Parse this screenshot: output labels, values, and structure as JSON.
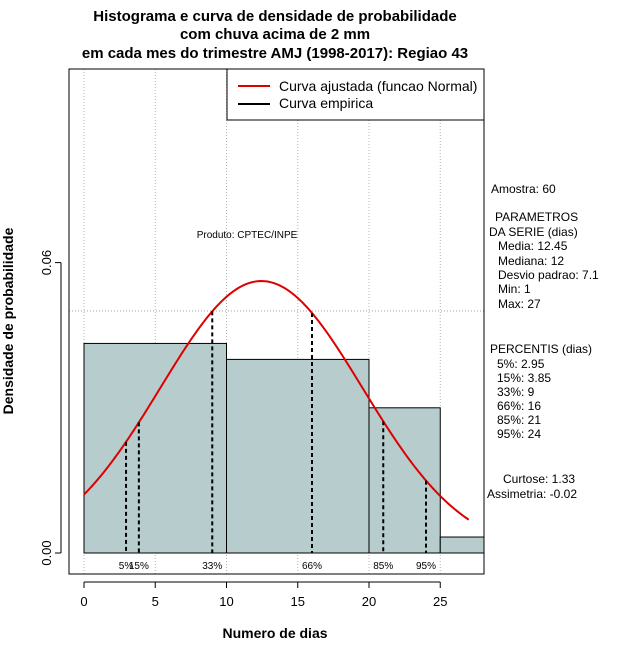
{
  "chart_data": {
    "type": "histogram",
    "title_lines": [
      "Histograma e curva de densidade de probabilidade",
      "com chuva acima de 2 mm",
      "em cada mes do trimestre AMJ (1998-2017): Regiao 43"
    ],
    "xlabel": "Numero de dias",
    "ylabel": "Densidade de probabilidade",
    "xlim": [
      -1,
      28
    ],
    "ylim": [
      -0.003,
      0.099
    ],
    "x_ticks": [
      0,
      5,
      10,
      15,
      20,
      25
    ],
    "x_tick_labels": [
      "0",
      "5",
      "10",
      "15",
      "20",
      "25"
    ],
    "y_ticks": [
      0.0,
      0.06
    ],
    "y_tick_labels": [
      "0.00",
      "0.06"
    ],
    "grid": true,
    "bins": [
      {
        "x0": 0,
        "x1": 10,
        "density": 0.0433
      },
      {
        "x0": 10,
        "x1": 20,
        "density": 0.04
      },
      {
        "x0": 20,
        "x1": 25,
        "density": 0.03
      },
      {
        "x0": 25,
        "x1": 30,
        "density": 0.0033
      }
    ],
    "bar_color": "#b7cccc",
    "normal_fit": {
      "mean": 12.45,
      "sd": 7.1,
      "x_range": [
        0,
        27
      ],
      "color": "#dd0000"
    },
    "reference_hline": 0.05,
    "percentile_lines": [
      {
        "label": "5%",
        "x": 2.95
      },
      {
        "label": "15%",
        "x": 3.85
      },
      {
        "label": "33%",
        "x": 9
      },
      {
        "label": "66%",
        "x": 16
      },
      {
        "label": "85%",
        "x": 21
      },
      {
        "label": "95%",
        "x": 24
      }
    ],
    "legend": {
      "placement": "top-right",
      "entries": [
        {
          "label": "Curva ajustada (funcao Normal)",
          "color": "#dd0000"
        },
        {
          "label": "Curva empirica",
          "color": "#000000"
        }
      ]
    },
    "annotation_produto": "Produto: CPTEC/INPE",
    "side_text": {
      "amostra": "Amostra: 60",
      "parametros_title": "PARAMETROS",
      "parametros_subtitle": "DA SERIE (dias)",
      "parametros": [
        "Media: 12.45",
        "Mediana: 12",
        "Desvio padrao: 7.1",
        "Min: 1",
        "Max: 27"
      ],
      "percentis_title": "PERCENTIS (dias)",
      "percentis": [
        "5%: 2.95",
        "15%: 3.85",
        "33%: 9",
        "66%: 16",
        "85%: 21",
        "95%: 24"
      ],
      "curtose": "Curtose: 1.33",
      "assimetria": "Assimetria: -0.02"
    }
  }
}
